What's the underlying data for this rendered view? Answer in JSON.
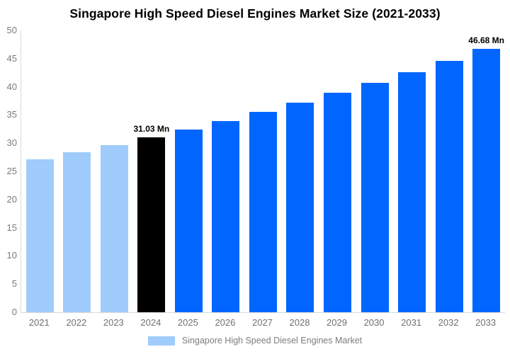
{
  "chart_data": {
    "type": "bar",
    "title": "Singapore High Speed Diesel Engines Market Size (2021-2033)",
    "categories": [
      "2021",
      "2022",
      "2023",
      "2024",
      "2025",
      "2026",
      "2027",
      "2028",
      "2029",
      "2030",
      "2031",
      "2032",
      "2033"
    ],
    "series": [
      {
        "name": "Singapore High Speed Diesel Engines Market",
        "values": [
          27.08,
          28.34,
          29.65,
          31.03,
          32.47,
          33.97,
          35.55,
          37.2,
          38.93,
          40.73,
          42.62,
          44.6,
          46.68
        ]
      }
    ],
    "xlabel": "",
    "ylabel": "",
    "ylim": [
      0,
      50
    ],
    "ytick_step": 5,
    "grid": false,
    "legend_position": "bottom",
    "bar_colors": {
      "historical": "#9FCCFA",
      "highlight": "#000000",
      "forecast": "#0066FF"
    },
    "color_roles": [
      "historical",
      "historical",
      "historical",
      "highlight",
      "forecast",
      "forecast",
      "forecast",
      "forecast",
      "forecast",
      "forecast",
      "forecast",
      "forecast",
      "forecast"
    ],
    "data_labels": [
      {
        "index": 3,
        "text": "31.03 Mn"
      },
      {
        "index": 12,
        "text": "46.68 Mn"
      }
    ],
    "legend": {
      "label": "Singapore High Speed Diesel Engines Market",
      "swatch_color": "#9FCCFA"
    }
  }
}
